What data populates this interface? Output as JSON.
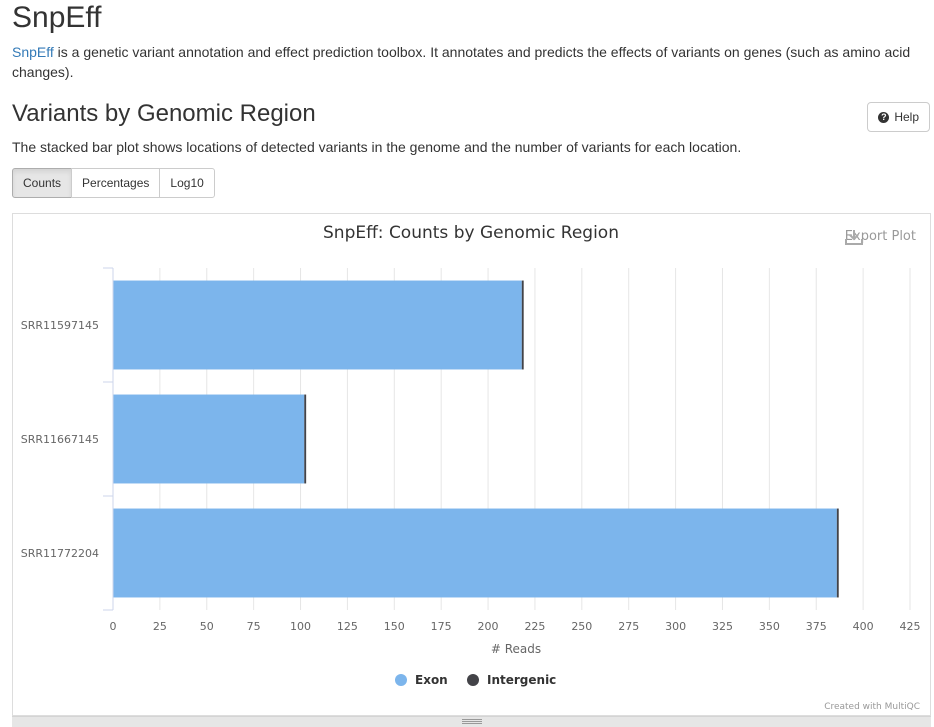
{
  "header": {
    "title": "SnpEff",
    "intro_link": "SnpEff",
    "intro_text": " is a genetic variant annotation and effect prediction toolbox. It annotates and predicts the effects of variants on genes (such as amino acid changes)."
  },
  "section": {
    "title": "Variants by Genomic Region",
    "help_label": "Help",
    "description": "The stacked bar plot shows locations of detected variants in the genome and the number of variants for each location.",
    "buttons": [
      "Counts",
      "Percentages",
      "Log10"
    ],
    "active_button": "Counts"
  },
  "plot": {
    "export_label": "Export Plot",
    "credit": "Created with MultiQC"
  },
  "colors": {
    "exon": "#7cb5ec",
    "intergenic": "#434348"
  },
  "chart_data": {
    "type": "bar",
    "orientation": "horizontal",
    "stacked": true,
    "title": "SnpEff: Counts by Genomic Region",
    "xlabel": "# Reads",
    "ylabel": "",
    "categories": [
      "SRR11597145",
      "SRR11667145",
      "SRR11772204"
    ],
    "series": [
      {
        "name": "Exon",
        "values": [
          218,
          102,
          386
        ]
      },
      {
        "name": "Intergenic",
        "values": [
          1,
          1,
          1
        ]
      }
    ],
    "xlim": [
      0,
      425
    ],
    "xticks": [
      0,
      25,
      50,
      75,
      100,
      125,
      150,
      175,
      200,
      225,
      250,
      275,
      300,
      325,
      350,
      375,
      400,
      425
    ],
    "grid": true,
    "legend_position": "bottom-center"
  }
}
